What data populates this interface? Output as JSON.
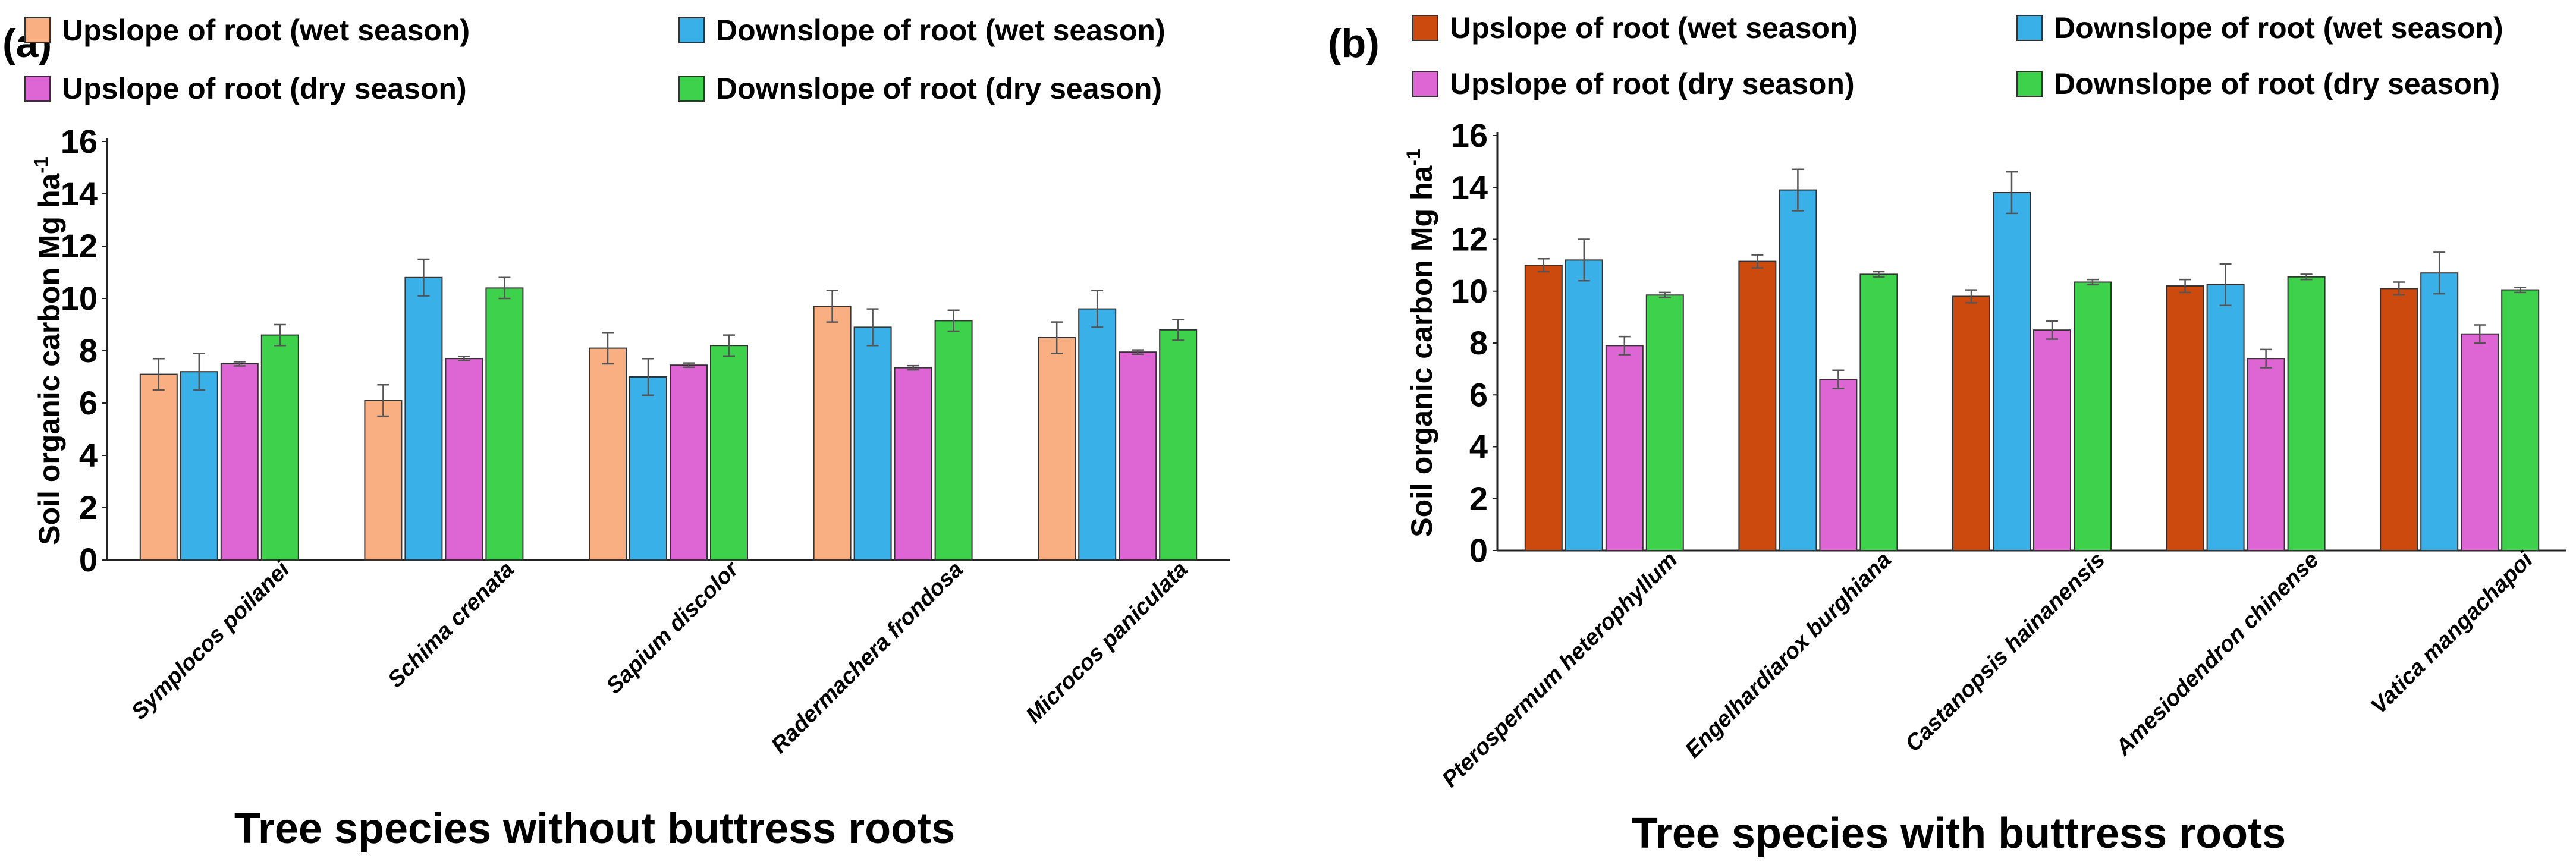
{
  "chart_data": [
    {
      "type": "bar",
      "panel_label": "(a)",
      "xlabel": "Tree species without buttress roots",
      "ylabel": "Soil organic carbon Mg ha",
      "ylabel_sup": "-1",
      "ylim": [
        0,
        16
      ],
      "yticks": [
        "0",
        "2",
        "4",
        "6",
        "8",
        "10",
        "12",
        "14",
        "16"
      ],
      "categories": [
        "Symplocos poilanei",
        "Schima crenata",
        "Sapium discolor",
        "Radermachera frondosa",
        "Microcos paniculata"
      ],
      "series": [
        {
          "name": "Upslope of root (wet season)",
          "color": "#FAAF82",
          "values": [
            7.1,
            6.1,
            8.1,
            9.7,
            8.5
          ],
          "errors": [
            0.6,
            0.6,
            0.6,
            0.6,
            0.6
          ]
        },
        {
          "name": "Downslope of root (wet season)",
          "color": "#3AB0E8",
          "values": [
            7.2,
            10.8,
            7.0,
            8.9,
            9.6
          ],
          "errors": [
            0.7,
            0.7,
            0.7,
            0.7,
            0.7
          ]
        },
        {
          "name": "Upslope of root (dry season)",
          "color": "#DE66D4",
          "values": [
            7.5,
            7.7,
            7.45,
            7.35,
            7.95
          ],
          "errors": [
            0.08,
            0.08,
            0.08,
            0.08,
            0.08
          ]
        },
        {
          "name": "Downslope of root (dry season)",
          "color": "#3ED14C",
          "values": [
            8.6,
            10.4,
            8.2,
            9.15,
            8.8
          ],
          "errors": [
            0.4,
            0.4,
            0.4,
            0.4,
            0.4
          ]
        }
      ]
    },
    {
      "type": "bar",
      "panel_label": "(b)",
      "xlabel": "Tree species with buttress roots",
      "ylabel": "Soil organic carbon Mg ha",
      "ylabel_sup": "-1",
      "ylim": [
        0,
        16
      ],
      "yticks": [
        "0",
        "2",
        "4",
        "6",
        "8",
        "10",
        "12",
        "14",
        "16"
      ],
      "categories": [
        "Pterospermum heterophyllum",
        "Engelhardiarox burghiana",
        "Castanopsis hainanensis",
        "Amesiodendron chinense",
        "Vatica mangachapoi"
      ],
      "series": [
        {
          "name": "Upslope of root (wet season)",
          "color": "#CC4A0E",
          "values": [
            11.0,
            11.15,
            9.8,
            10.2,
            10.1
          ],
          "errors": [
            0.25,
            0.25,
            0.25,
            0.25,
            0.25
          ]
        },
        {
          "name": "Downslope of root (wet season)",
          "color": "#3AB0E8",
          "values": [
            11.2,
            13.9,
            13.8,
            10.25,
            10.7
          ],
          "errors": [
            0.8,
            0.8,
            0.8,
            0.8,
            0.8
          ]
        },
        {
          "name": "Upslope of root (dry season)",
          "color": "#DE66D4",
          "values": [
            7.9,
            6.6,
            8.5,
            7.4,
            8.35
          ],
          "errors": [
            0.35,
            0.35,
            0.35,
            0.35,
            0.35
          ]
        },
        {
          "name": "Downslope of root (dry season)",
          "color": "#3ED14C",
          "values": [
            9.85,
            10.65,
            10.35,
            10.55,
            10.05
          ],
          "errors": [
            0.1,
            0.1,
            0.1,
            0.1,
            0.1
          ]
        }
      ]
    }
  ]
}
